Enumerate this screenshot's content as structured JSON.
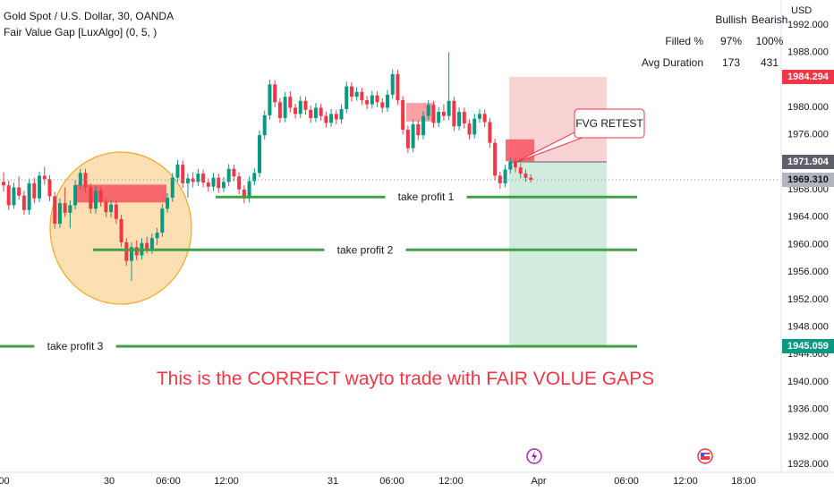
{
  "header": {
    "symbol_line": "Gold Spot / U.S. Dollar, 30, OANDA",
    "indicator_line": "Fair Value Gap [LuxAlgo] (0, 5, )"
  },
  "stats": {
    "col_bullish": "Bullish",
    "col_bearish": "Bearish",
    "rows": [
      {
        "label": "Filled %",
        "bullish": "97%",
        "bearish": "100%"
      },
      {
        "label": "Avg Duration",
        "bullish": "173",
        "bearish": "431"
      }
    ]
  },
  "price_axis": {
    "currency": "USD",
    "ticks": [
      "1992.000",
      "1988.000",
      "1984.000",
      "1980.000",
      "1976.000",
      "1972.000",
      "1968.000",
      "1964.000",
      "1960.000",
      "1956.000",
      "1952.000",
      "1948.000",
      "1944.000",
      "1940.000",
      "1936.000",
      "1932.000",
      "1928.000"
    ],
    "tags": [
      {
        "label": "1984.294",
        "value": 1984.294,
        "color": "#f23645"
      },
      {
        "label": "1971.904",
        "value": 1971.904,
        "color": "#5d606b"
      },
      {
        "label": "1969.310",
        "value": 1969.31,
        "color": "#b2b5be"
      },
      {
        "label": "1945.059",
        "value": 1945.059,
        "color": "#089981"
      }
    ]
  },
  "time_axis": {
    "ticks": [
      ":00",
      "30",
      "06:00",
      "12:00",
      "31",
      "06:00",
      "12:00",
      "Apr",
      "06:00",
      "12:00",
      "18:00"
    ]
  },
  "annotations": {
    "fvg_retest": "FVG RETEST",
    "tp1": "take profit 1",
    "tp2": "take profit 2",
    "tp3": "take profit 3",
    "headline": "This is the CORRECT wayto trade with FAIR VOLUE GAPS"
  },
  "colors": {
    "up": "#089981",
    "down": "#f23645",
    "fvg_bear": "#f7525f",
    "tp_line": "#43a047",
    "circle_fill": "#fcd9a6",
    "circle_stroke": "#f5a623",
    "stop_zone": "#f8c8c8",
    "target_zone": "#cde9dc",
    "headline": "#f23645"
  },
  "chart_data": {
    "type": "candlestick",
    "title": "Gold Spot / U.S. Dollar, 30, OANDA",
    "y_range": [
      1926.0,
      1994.0
    ],
    "x_labels": [
      ":00",
      "30",
      "06:00",
      "12:00",
      "31",
      "06:00",
      "12:00",
      "Apr",
      "06:00",
      "12:00",
      "18:00"
    ],
    "candles": [
      [
        1969.0,
        1970.4,
        1967.6,
        1968.5
      ],
      [
        1968.5,
        1969.2,
        1964.9,
        1965.6
      ],
      [
        1965.6,
        1968.9,
        1965.1,
        1968.2
      ],
      [
        1968.2,
        1969.8,
        1966.4,
        1967.0
      ],
      [
        1967.0,
        1967.7,
        1964.2,
        1964.9
      ],
      [
        1964.9,
        1969.5,
        1964.2,
        1968.8
      ],
      [
        1968.8,
        1969.6,
        1965.9,
        1966.6
      ],
      [
        1966.6,
        1970.5,
        1966.0,
        1969.9
      ],
      [
        1969.9,
        1971.2,
        1968.6,
        1969.4
      ],
      [
        1969.4,
        1970.0,
        1966.2,
        1966.9
      ],
      [
        1966.9,
        1967.5,
        1962.2,
        1962.9
      ],
      [
        1962.9,
        1966.6,
        1962.3,
        1965.9
      ],
      [
        1965.9,
        1968.2,
        1963.9,
        1964.5
      ],
      [
        1964.5,
        1966.3,
        1962.3,
        1965.6
      ],
      [
        1965.6,
        1969.2,
        1965.0,
        1968.5
      ],
      [
        1968.5,
        1970.9,
        1967.9,
        1970.3
      ],
      [
        1970.3,
        1970.9,
        1967.5,
        1968.2
      ],
      [
        1968.2,
        1968.8,
        1964.4,
        1965.1
      ],
      [
        1965.1,
        1968.4,
        1964.4,
        1967.7
      ],
      [
        1967.7,
        1968.3,
        1965.4,
        1966.1
      ],
      [
        1966.1,
        1966.7,
        1963.9,
        1964.6
      ],
      [
        1964.6,
        1966.4,
        1963.8,
        1965.7
      ],
      [
        1965.7,
        1966.3,
        1962.9,
        1963.6
      ],
      [
        1963.6,
        1964.2,
        1959.5,
        1960.2
      ],
      [
        1960.2,
        1960.8,
        1956.8,
        1957.5
      ],
      [
        1957.5,
        1960.2,
        1954.6,
        1959.5
      ],
      [
        1959.5,
        1960.5,
        1957.6,
        1958.3
      ],
      [
        1958.3,
        1960.8,
        1957.7,
        1960.1
      ],
      [
        1960.1,
        1961.0,
        1958.6,
        1959.2
      ],
      [
        1959.2,
        1961.5,
        1958.5,
        1960.8
      ],
      [
        1960.8,
        1962.3,
        1959.8,
        1961.6
      ],
      [
        1961.6,
        1965.8,
        1961.0,
        1965.1
      ],
      [
        1965.1,
        1967.4,
        1964.5,
        1966.7
      ],
      [
        1966.7,
        1970.3,
        1966.1,
        1969.6
      ],
      [
        1969.6,
        1972.2,
        1969.0,
        1971.5
      ],
      [
        1971.5,
        1972.1,
        1968.1,
        1968.8
      ],
      [
        1968.8,
        1970.2,
        1966.7,
        1969.5
      ],
      [
        1969.5,
        1970.4,
        1968.2,
        1969.0
      ],
      [
        1969.0,
        1970.9,
        1968.4,
        1970.2
      ],
      [
        1970.2,
        1970.8,
        1968.2,
        1968.9
      ],
      [
        1968.9,
        1969.5,
        1967.6,
        1968.3
      ],
      [
        1968.3,
        1970.3,
        1967.7,
        1969.6
      ],
      [
        1969.6,
        1970.2,
        1967.4,
        1968.1
      ],
      [
        1968.1,
        1969.7,
        1967.5,
        1969.0
      ],
      [
        1969.0,
        1971.6,
        1968.4,
        1970.9
      ],
      [
        1970.9,
        1971.5,
        1969.1,
        1969.8
      ],
      [
        1969.8,
        1970.4,
        1967.2,
        1967.9
      ],
      [
        1967.9,
        1968.5,
        1965.9,
        1966.6
      ],
      [
        1966.6,
        1969.8,
        1966.0,
        1969.1
      ],
      [
        1969.1,
        1971.0,
        1968.5,
        1970.3
      ],
      [
        1970.3,
        1976.5,
        1969.7,
        1975.8
      ],
      [
        1975.8,
        1979.4,
        1975.2,
        1978.7
      ],
      [
        1978.7,
        1983.9,
        1978.1,
        1983.2
      ],
      [
        1983.2,
        1983.8,
        1979.9,
        1980.6
      ],
      [
        1980.6,
        1981.2,
        1977.6,
        1978.3
      ],
      [
        1978.3,
        1982.1,
        1977.7,
        1981.4
      ],
      [
        1981.4,
        1982.2,
        1979.1,
        1979.8
      ],
      [
        1979.8,
        1980.4,
        1978.2,
        1978.9
      ],
      [
        1978.9,
        1981.5,
        1978.3,
        1980.8
      ],
      [
        1980.8,
        1981.4,
        1978.8,
        1979.5
      ],
      [
        1979.5,
        1980.1,
        1977.6,
        1978.3
      ],
      [
        1978.3,
        1980.5,
        1977.7,
        1979.8
      ],
      [
        1979.8,
        1980.4,
        1977.9,
        1978.6
      ],
      [
        1978.6,
        1979.2,
        1976.9,
        1977.6
      ],
      [
        1977.6,
        1979.6,
        1977.0,
        1978.9
      ],
      [
        1978.9,
        1979.5,
        1977.4,
        1978.1
      ],
      [
        1978.1,
        1980.3,
        1977.5,
        1979.6
      ],
      [
        1979.6,
        1983.6,
        1979.0,
        1982.9
      ],
      [
        1982.9,
        1983.5,
        1980.7,
        1981.4
      ],
      [
        1981.4,
        1982.8,
        1980.8,
        1982.1
      ],
      [
        1982.1,
        1982.7,
        1980.2,
        1980.9
      ],
      [
        1980.9,
        1981.5,
        1979.6,
        1980.3
      ],
      [
        1980.3,
        1982.3,
        1979.7,
        1981.6
      ],
      [
        1981.6,
        1982.2,
        1979.9,
        1980.6
      ],
      [
        1980.6,
        1981.2,
        1979.1,
        1979.8
      ],
      [
        1979.8,
        1982.4,
        1979.2,
        1981.7
      ],
      [
        1981.7,
        1985.4,
        1981.1,
        1984.7
      ],
      [
        1984.7,
        1985.3,
        1980.2,
        1980.9
      ],
      [
        1980.9,
        1981.5,
        1975.9,
        1976.6
      ],
      [
        1976.6,
        1977.2,
        1973.2,
        1973.9
      ],
      [
        1973.9,
        1978.1,
        1973.3,
        1977.4
      ],
      [
        1977.4,
        1978.0,
        1975.1,
        1975.8
      ],
      [
        1975.8,
        1979.3,
        1975.2,
        1978.6
      ],
      [
        1978.6,
        1980.9,
        1978.0,
        1980.2
      ],
      [
        1980.2,
        1980.8,
        1976.9,
        1977.6
      ],
      [
        1977.6,
        1979.9,
        1977.0,
        1979.2
      ],
      [
        1979.2,
        1980.3,
        1977.9,
        1978.6
      ],
      [
        1978.6,
        1987.9,
        1978.0,
        1980.8
      ],
      [
        1980.8,
        1981.4,
        1976.4,
        1977.1
      ],
      [
        1977.1,
        1979.9,
        1976.5,
        1979.2
      ],
      [
        1979.2,
        1979.8,
        1976.8,
        1977.5
      ],
      [
        1977.5,
        1978.1,
        1975.2,
        1975.9
      ],
      [
        1975.9,
        1978.9,
        1975.3,
        1978.2
      ],
      [
        1978.2,
        1979.6,
        1977.6,
        1978.9
      ],
      [
        1978.9,
        1979.5,
        1977.0,
        1977.7
      ],
      [
        1977.7,
        1978.3,
        1974.0,
        1974.7
      ],
      [
        1974.7,
        1975.3,
        1969.2,
        1969.9
      ],
      [
        1969.9,
        1970.5,
        1968.0,
        1968.8
      ],
      [
        1968.8,
        1971.5,
        1968.2,
        1970.8
      ],
      [
        1970.8,
        1972.5,
        1970.2,
        1971.9
      ],
      [
        1971.9,
        1972.5,
        1970.4,
        1971.1
      ],
      [
        1971.1,
        1971.7,
        1969.5,
        1970.2
      ],
      [
        1970.2,
        1970.8,
        1969.0,
        1969.6
      ],
      [
        1969.6,
        1970.1,
        1968.9,
        1969.3
      ]
    ],
    "fair_value_gaps": [
      {
        "kind": "bearish",
        "top": 1968.6,
        "bottom": 1966.0
      },
      {
        "kind": "bearish",
        "top": 1980.5,
        "bottom": 1977.8
      },
      {
        "kind": "bearish",
        "top": 1975.2,
        "bottom": 1972.0
      }
    ],
    "position": {
      "entry": 1971.904,
      "stop": 1984.294,
      "target": 1945.059
    },
    "take_profits": [
      {
        "label": "take profit 1",
        "value": 1966.8
      },
      {
        "label": "take profit 2",
        "value": 1959.1
      },
      {
        "label": "take profit 3",
        "value": 1945.059
      }
    ],
    "last_price": 1969.31
  }
}
